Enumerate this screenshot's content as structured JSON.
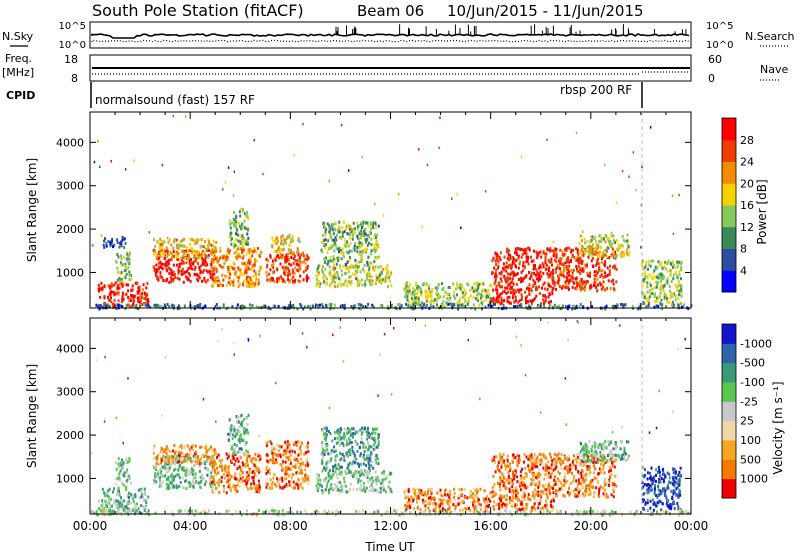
{
  "header": {
    "station": "South Pole Station (fitACF)",
    "beam": "Beam 06",
    "date_range": "10/Jun/2015 - 11/Jun/2015"
  },
  "strip_labels": {
    "nsky": "N.Sky",
    "nsearch": "N.Search",
    "freq_line1": "Freq.",
    "freq_line2": "[MHz]",
    "nave": "Nave",
    "cpid": "CPID"
  },
  "cpid_segments": [
    {
      "label": "normalsound (fast) 157 RF",
      "start_hour": 0,
      "end_hour": 22
    },
    {
      "label": "rbsp 200 RF",
      "start_hour": 22,
      "end_hour": 24
    }
  ],
  "colors": {
    "power": [
      "#0000ff",
      "#2c4ea0",
      "#3a8a5a",
      "#86c85a",
      "#f5d200",
      "#f58c00",
      "#f03c00",
      "#ff0000"
    ],
    "velocity": [
      "#ee0000",
      "#f57a00",
      "#f5a623",
      "#f0d8a8",
      "#c8c8c8",
      "#58c850",
      "#3a9a78",
      "#2e64aa",
      "#1414cc"
    ],
    "ground_scatter": "#a8a8a8"
  },
  "chart_data": [
    {
      "type": "line",
      "name": "noise-strip",
      "left_axis": {
        "label": "N.Sky",
        "ticks": [
          "10^5",
          "10^0"
        ]
      },
      "right_axis": {
        "label": "N.Search",
        "ticks": [
          "10^5",
          "10^0"
        ]
      },
      "x": [
        0,
        24
      ],
      "series": [
        {
          "name": "N.Sky",
          "style": "solid"
        },
        {
          "name": "N.Search",
          "style": "dotted"
        }
      ]
    },
    {
      "type": "line",
      "name": "freq-nave-strip",
      "left_axis": {
        "label": "Freq. [MHz]",
        "ticks": [
          18,
          8
        ],
        "range": [
          8,
          18
        ]
      },
      "right_axis": {
        "label": "Nave",
        "ticks": [
          60,
          0
        ],
        "range": [
          0,
          60
        ]
      },
      "series": [
        {
          "name": "Freq.",
          "value": 12,
          "style": "solid"
        },
        {
          "name": "Nave",
          "value": 8,
          "style": "dotted"
        }
      ]
    },
    {
      "type": "heatmap",
      "name": "power-panel",
      "ylabel": "Slant Range [km]",
      "yticks": [
        1000,
        2000,
        3000,
        4000
      ],
      "ylim": [
        180,
        4700
      ],
      "xlim": [
        0,
        24
      ],
      "colorbar": {
        "label": "Power [dB]",
        "ticks": [
          4,
          8,
          12,
          16,
          20,
          24,
          28
        ]
      },
      "regions": [
        {
          "t0": 0.3,
          "t1": 2.3,
          "r0": 200,
          "r1": 800,
          "level": 0.9
        },
        {
          "t0": 0.5,
          "t1": 1.4,
          "r0": 1600,
          "r1": 1850,
          "level": 0.2
        },
        {
          "t0": 1.0,
          "t1": 1.6,
          "r0": 800,
          "r1": 1500,
          "level": 0.4
        },
        {
          "t0": 2.5,
          "t1": 5.0,
          "r0": 800,
          "r1": 1550,
          "level": 0.95
        },
        {
          "t0": 2.5,
          "t1": 5.0,
          "r0": 1350,
          "r1": 1800,
          "level": 0.6
        },
        {
          "t0": 4.8,
          "t1": 6.8,
          "r0": 700,
          "r1": 1600,
          "level": 0.7
        },
        {
          "t0": 5.5,
          "t1": 6.3,
          "r0": 1600,
          "r1": 2500,
          "level": 0.4
        },
        {
          "t0": 7.0,
          "t1": 8.7,
          "r0": 800,
          "r1": 1500,
          "level": 0.85
        },
        {
          "t0": 7.2,
          "t1": 8.4,
          "r0": 1500,
          "r1": 1900,
          "level": 0.55
        },
        {
          "t0": 9.2,
          "t1": 11.5,
          "r0": 1200,
          "r1": 2200,
          "level": 0.4
        },
        {
          "t0": 9.0,
          "t1": 12.0,
          "r0": 700,
          "r1": 1200,
          "level": 0.5
        },
        {
          "t0": 12.5,
          "t1": 16.0,
          "r0": 250,
          "r1": 800,
          "level": 0.45
        },
        {
          "t0": 16.0,
          "t1": 18.5,
          "r0": 300,
          "r1": 1600,
          "level": 0.92
        },
        {
          "t0": 18.5,
          "t1": 21.0,
          "r0": 600,
          "r1": 1600,
          "level": 0.85
        },
        {
          "t0": 19.5,
          "t1": 21.5,
          "r0": 1400,
          "r1": 1900,
          "level": 0.5
        },
        {
          "t0": 22.0,
          "t1": 23.6,
          "r0": 300,
          "r1": 1300,
          "level": 0.45
        },
        {
          "t0": 0,
          "t1": 24,
          "r0": 190,
          "r1": 300,
          "level": 0.25
        }
      ]
    },
    {
      "type": "heatmap",
      "name": "velocity-panel",
      "ylabel": "Slant Range [km]",
      "xlabel": "Time UT",
      "yticks": [
        1000,
        2000,
        3000,
        4000
      ],
      "ylim": [
        180,
        4700
      ],
      "xlim": [
        0,
        24
      ],
      "xticks": [
        "00:00",
        "04:00",
        "08:00",
        "12:00",
        "16:00",
        "20:00",
        "00:00"
      ],
      "colorbar": {
        "label": "Velocity [m s⁻¹]",
        "ticks": [
          1000,
          500,
          100,
          25,
          -25,
          -100,
          -500,
          -1000
        ]
      },
      "regions": [
        {
          "t0": 0.3,
          "t1": 2.3,
          "r0": 200,
          "r1": 800,
          "level": 0.62
        },
        {
          "t0": 1.0,
          "t1": 1.6,
          "r0": 800,
          "r1": 1500,
          "level": 0.6
        },
        {
          "t0": 2.5,
          "t1": 5.0,
          "r0": 800,
          "r1": 1550,
          "level": 0.62
        },
        {
          "t0": 2.5,
          "t1": 5.0,
          "r0": 1350,
          "r1": 1800,
          "level": 0.25
        },
        {
          "t0": 4.8,
          "t1": 6.8,
          "r0": 700,
          "r1": 1600,
          "level": 0.2
        },
        {
          "t0": 5.5,
          "t1": 6.3,
          "r0": 1600,
          "r1": 2500,
          "level": 0.65
        },
        {
          "t0": 7.0,
          "t1": 8.7,
          "r0": 800,
          "r1": 1900,
          "level": 0.2
        },
        {
          "t0": 9.2,
          "t1": 11.5,
          "r0": 1200,
          "r1": 2200,
          "level": 0.68
        },
        {
          "t0": 9.0,
          "t1": 12.0,
          "r0": 700,
          "r1": 1200,
          "level": 0.6
        },
        {
          "t0": 12.5,
          "t1": 16.0,
          "r0": 250,
          "r1": 800,
          "level": 0.2
        },
        {
          "t0": 16.0,
          "t1": 18.5,
          "r0": 300,
          "r1": 1600,
          "level": 0.18
        },
        {
          "t0": 18.5,
          "t1": 21.0,
          "r0": 600,
          "r1": 1600,
          "level": 0.2
        },
        {
          "t0": 19.5,
          "t1": 21.5,
          "r0": 1400,
          "r1": 1900,
          "level": 0.65
        },
        {
          "t0": 22.0,
          "t1": 23.6,
          "r0": 300,
          "r1": 1300,
          "level": 0.9
        },
        {
          "t0": 0,
          "t1": 24,
          "r0": 190,
          "r1": 300,
          "level": 0.5
        }
      ]
    }
  ]
}
